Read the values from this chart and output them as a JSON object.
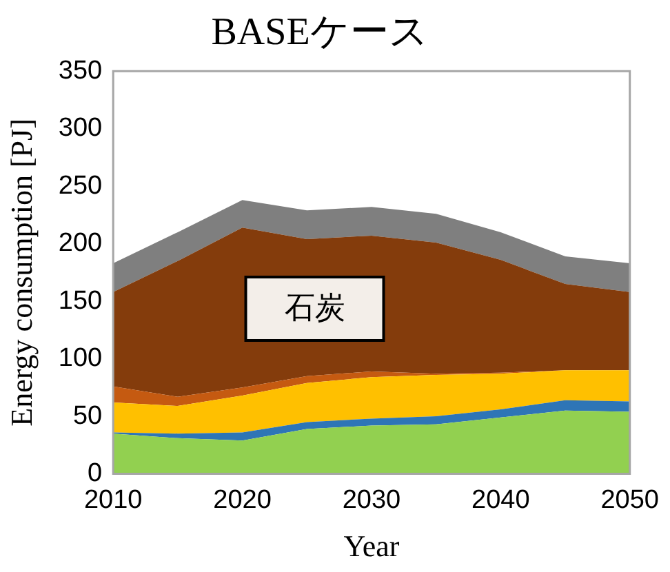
{
  "chart_data": {
    "type": "area",
    "stacked": true,
    "title": "BASEケース",
    "xlabel": "Year",
    "ylabel": "Energy consumption [PJ]",
    "x": [
      2010,
      2015,
      2020,
      2025,
      2030,
      2035,
      2040,
      2045,
      2050
    ],
    "xlim": [
      2010,
      2050
    ],
    "xticks": [
      2010,
      2020,
      2030,
      2040,
      2050
    ],
    "ylim": [
      0,
      350
    ],
    "yticks": [
      0,
      50,
      100,
      150,
      200,
      250,
      300,
      350
    ],
    "grid": false,
    "legend": false,
    "series": [
      {
        "color": "#92d050",
        "values": [
          35,
          31,
          29,
          39,
          42,
          43,
          49,
          55,
          54
        ]
      },
      {
        "color": "#2e75b6",
        "values": [
          1,
          4,
          7,
          6,
          6,
          7,
          7,
          9,
          9
        ]
      },
      {
        "color": "#ffc000",
        "values": [
          26,
          24,
          32,
          34,
          36,
          36,
          31,
          26,
          27
        ]
      },
      {
        "color": "#c55a11",
        "values": [
          14,
          8,
          7,
          6,
          5,
          1,
          1,
          0,
          0
        ]
      },
      {
        "color": "#843c0c",
        "values": [
          82,
          118,
          139,
          119,
          118,
          114,
          98,
          75,
          68
        ]
      },
      {
        "color": "#7f7f7f",
        "values": [
          25,
          25,
          24,
          25,
          25,
          25,
          24,
          24,
          25
        ]
      }
    ],
    "annotations": [
      "石炭"
    ]
  }
}
